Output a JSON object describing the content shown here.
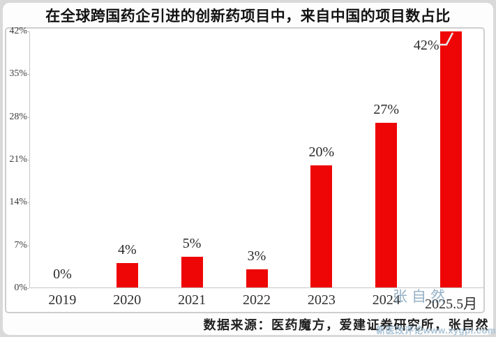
{
  "title": "在全球跨国药企引进的创新药项目中，来自中国的项目数占比",
  "chart_data": {
    "type": "bar",
    "categories": [
      "2019",
      "2020",
      "2021",
      "2022",
      "2023",
      "2024",
      "2025.5月"
    ],
    "values": [
      0,
      4,
      5,
      3,
      20,
      27,
      42
    ],
    "labels": [
      "0%",
      "4%",
      "5%",
      "3%",
      "20%",
      "27%",
      "42%"
    ],
    "yticks": [
      "42%",
      "35%",
      "28%",
      "21%",
      "14%",
      "7%",
      "0%"
    ],
    "ylim": [
      0,
      42
    ],
    "grid": false,
    "legend": null,
    "shifted_label_index": 6,
    "title": "在全球跨国药企引进的创新药项目中，来自中国的项目数占比",
    "xlabel": "",
    "ylabel": ""
  },
  "colors": {
    "bar": "#ee0606",
    "axis": "#c6c6c6",
    "watermark_author": "#7c9eb9",
    "watermark_footer": "#a3bfd3"
  },
  "source": "数据来源：医药魔方，爱建证券研究所，张自然",
  "watermarks": {
    "author": "张自然",
    "footer": "新医改评论www.xygpl.com"
  }
}
